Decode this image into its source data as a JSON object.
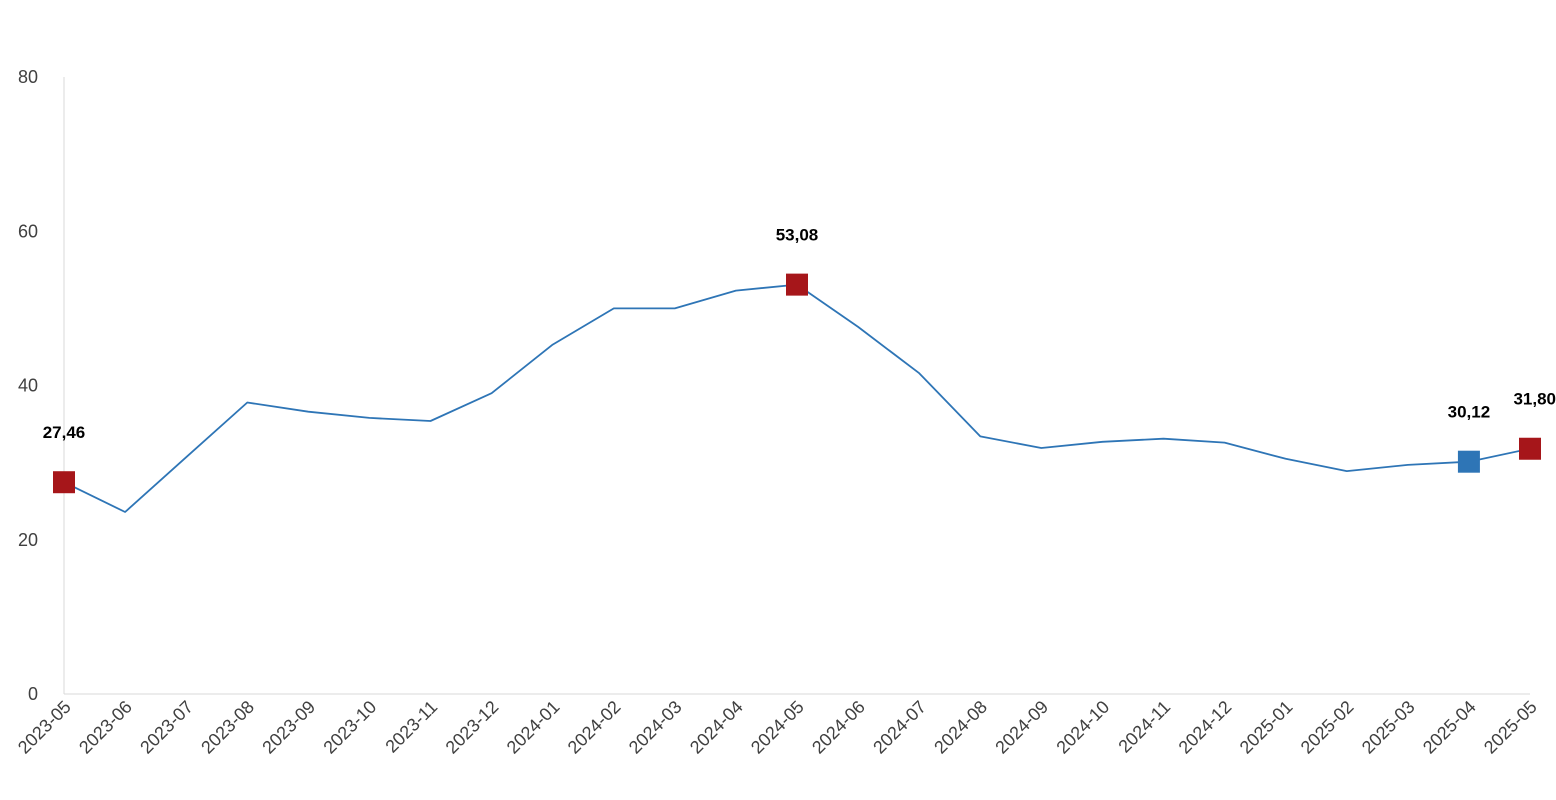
{
  "chart_data": {
    "type": "line",
    "title": "",
    "xlabel": "",
    "ylabel": "",
    "ylim": [
      0,
      80
    ],
    "yticks": [
      0,
      20,
      40,
      60,
      80
    ],
    "grid": false,
    "legend": "none",
    "categories": [
      "2023-05",
      "2023-06",
      "2023-07",
      "2023-08",
      "2023-09",
      "2023-10",
      "2023-11",
      "2023-12",
      "2024-01",
      "2024-02",
      "2024-03",
      "2024-04",
      "2024-05",
      "2024-06",
      "2024-07",
      "2024-08",
      "2024-09",
      "2024-10",
      "2024-11",
      "2024-12",
      "2025-01",
      "2025-02",
      "2025-03",
      "2025-04",
      "2025-05"
    ],
    "series": [
      {
        "values": [
          27.46,
          23.6,
          30.7,
          37.8,
          36.6,
          35.8,
          35.4,
          39.0,
          45.3,
          50.0,
          50.0,
          52.3,
          53.08,
          47.6,
          41.6,
          33.4,
          31.9,
          32.7,
          33.1,
          32.6,
          30.5,
          28.9,
          29.7,
          30.12,
          31.8
        ],
        "color": "#2e75b6"
      }
    ],
    "highlights": [
      {
        "index": 0,
        "label": "27,46",
        "color": "#a6161a"
      },
      {
        "index": 12,
        "label": "53,08",
        "color": "#a6161a"
      },
      {
        "index": 23,
        "label": "30,12",
        "color": "#2e75b6"
      },
      {
        "index": 24,
        "label": "31,80",
        "color": "#a6161a"
      }
    ],
    "colors": {
      "line": "#2e75b6",
      "axis": "#d9d9d9",
      "tick_text": "#404040"
    }
  }
}
